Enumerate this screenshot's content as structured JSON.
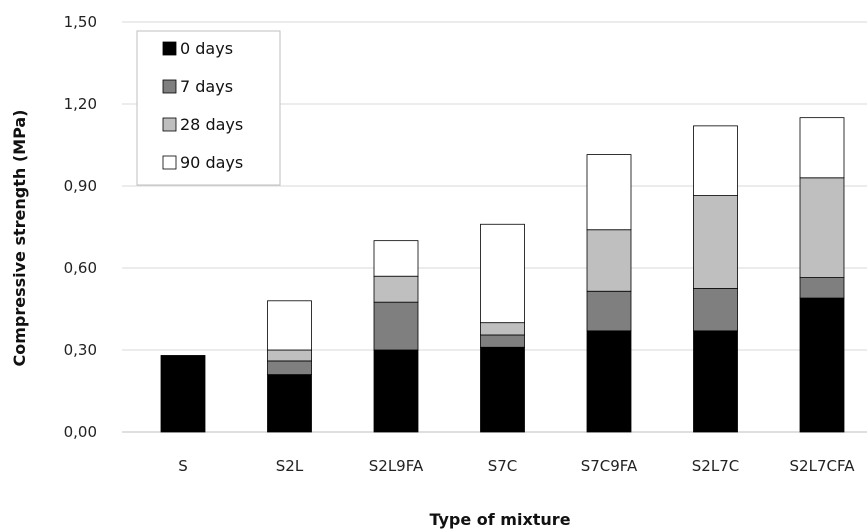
{
  "chart_data": {
    "type": "bar",
    "stacked": true,
    "categories": [
      "S",
      "S2L",
      "S2L9FA",
      "S7C",
      "S7C9FA",
      "S2L7C",
      "S2L7CFA"
    ],
    "series": [
      {
        "name": "0 days",
        "color": "#000000",
        "values": [
          0.28,
          0.21,
          0.3,
          0.31,
          0.37,
          0.37,
          0.49
        ]
      },
      {
        "name": "7 days",
        "color": "#7f7f7f",
        "values": [
          0.0,
          0.05,
          0.175,
          0.045,
          0.145,
          0.155,
          0.075
        ]
      },
      {
        "name": "28 days",
        "color": "#bfbfbf",
        "values": [
          0.0,
          0.04,
          0.095,
          0.045,
          0.225,
          0.34,
          0.365
        ]
      },
      {
        "name": "90 days",
        "color": "#ffffff",
        "values": [
          0.0,
          0.18,
          0.13,
          0.36,
          0.275,
          0.255,
          0.22
        ]
      }
    ],
    "xlabel": "Type of mixture",
    "ylabel": "Compressive strength (MPa)",
    "ylim": [
      0,
      1.5
    ],
    "yticks": [
      "0,00",
      "0,30",
      "0,60",
      "0,90",
      "1,20",
      "1,50"
    ],
    "gridlines": true,
    "legend_position": "top-left"
  }
}
